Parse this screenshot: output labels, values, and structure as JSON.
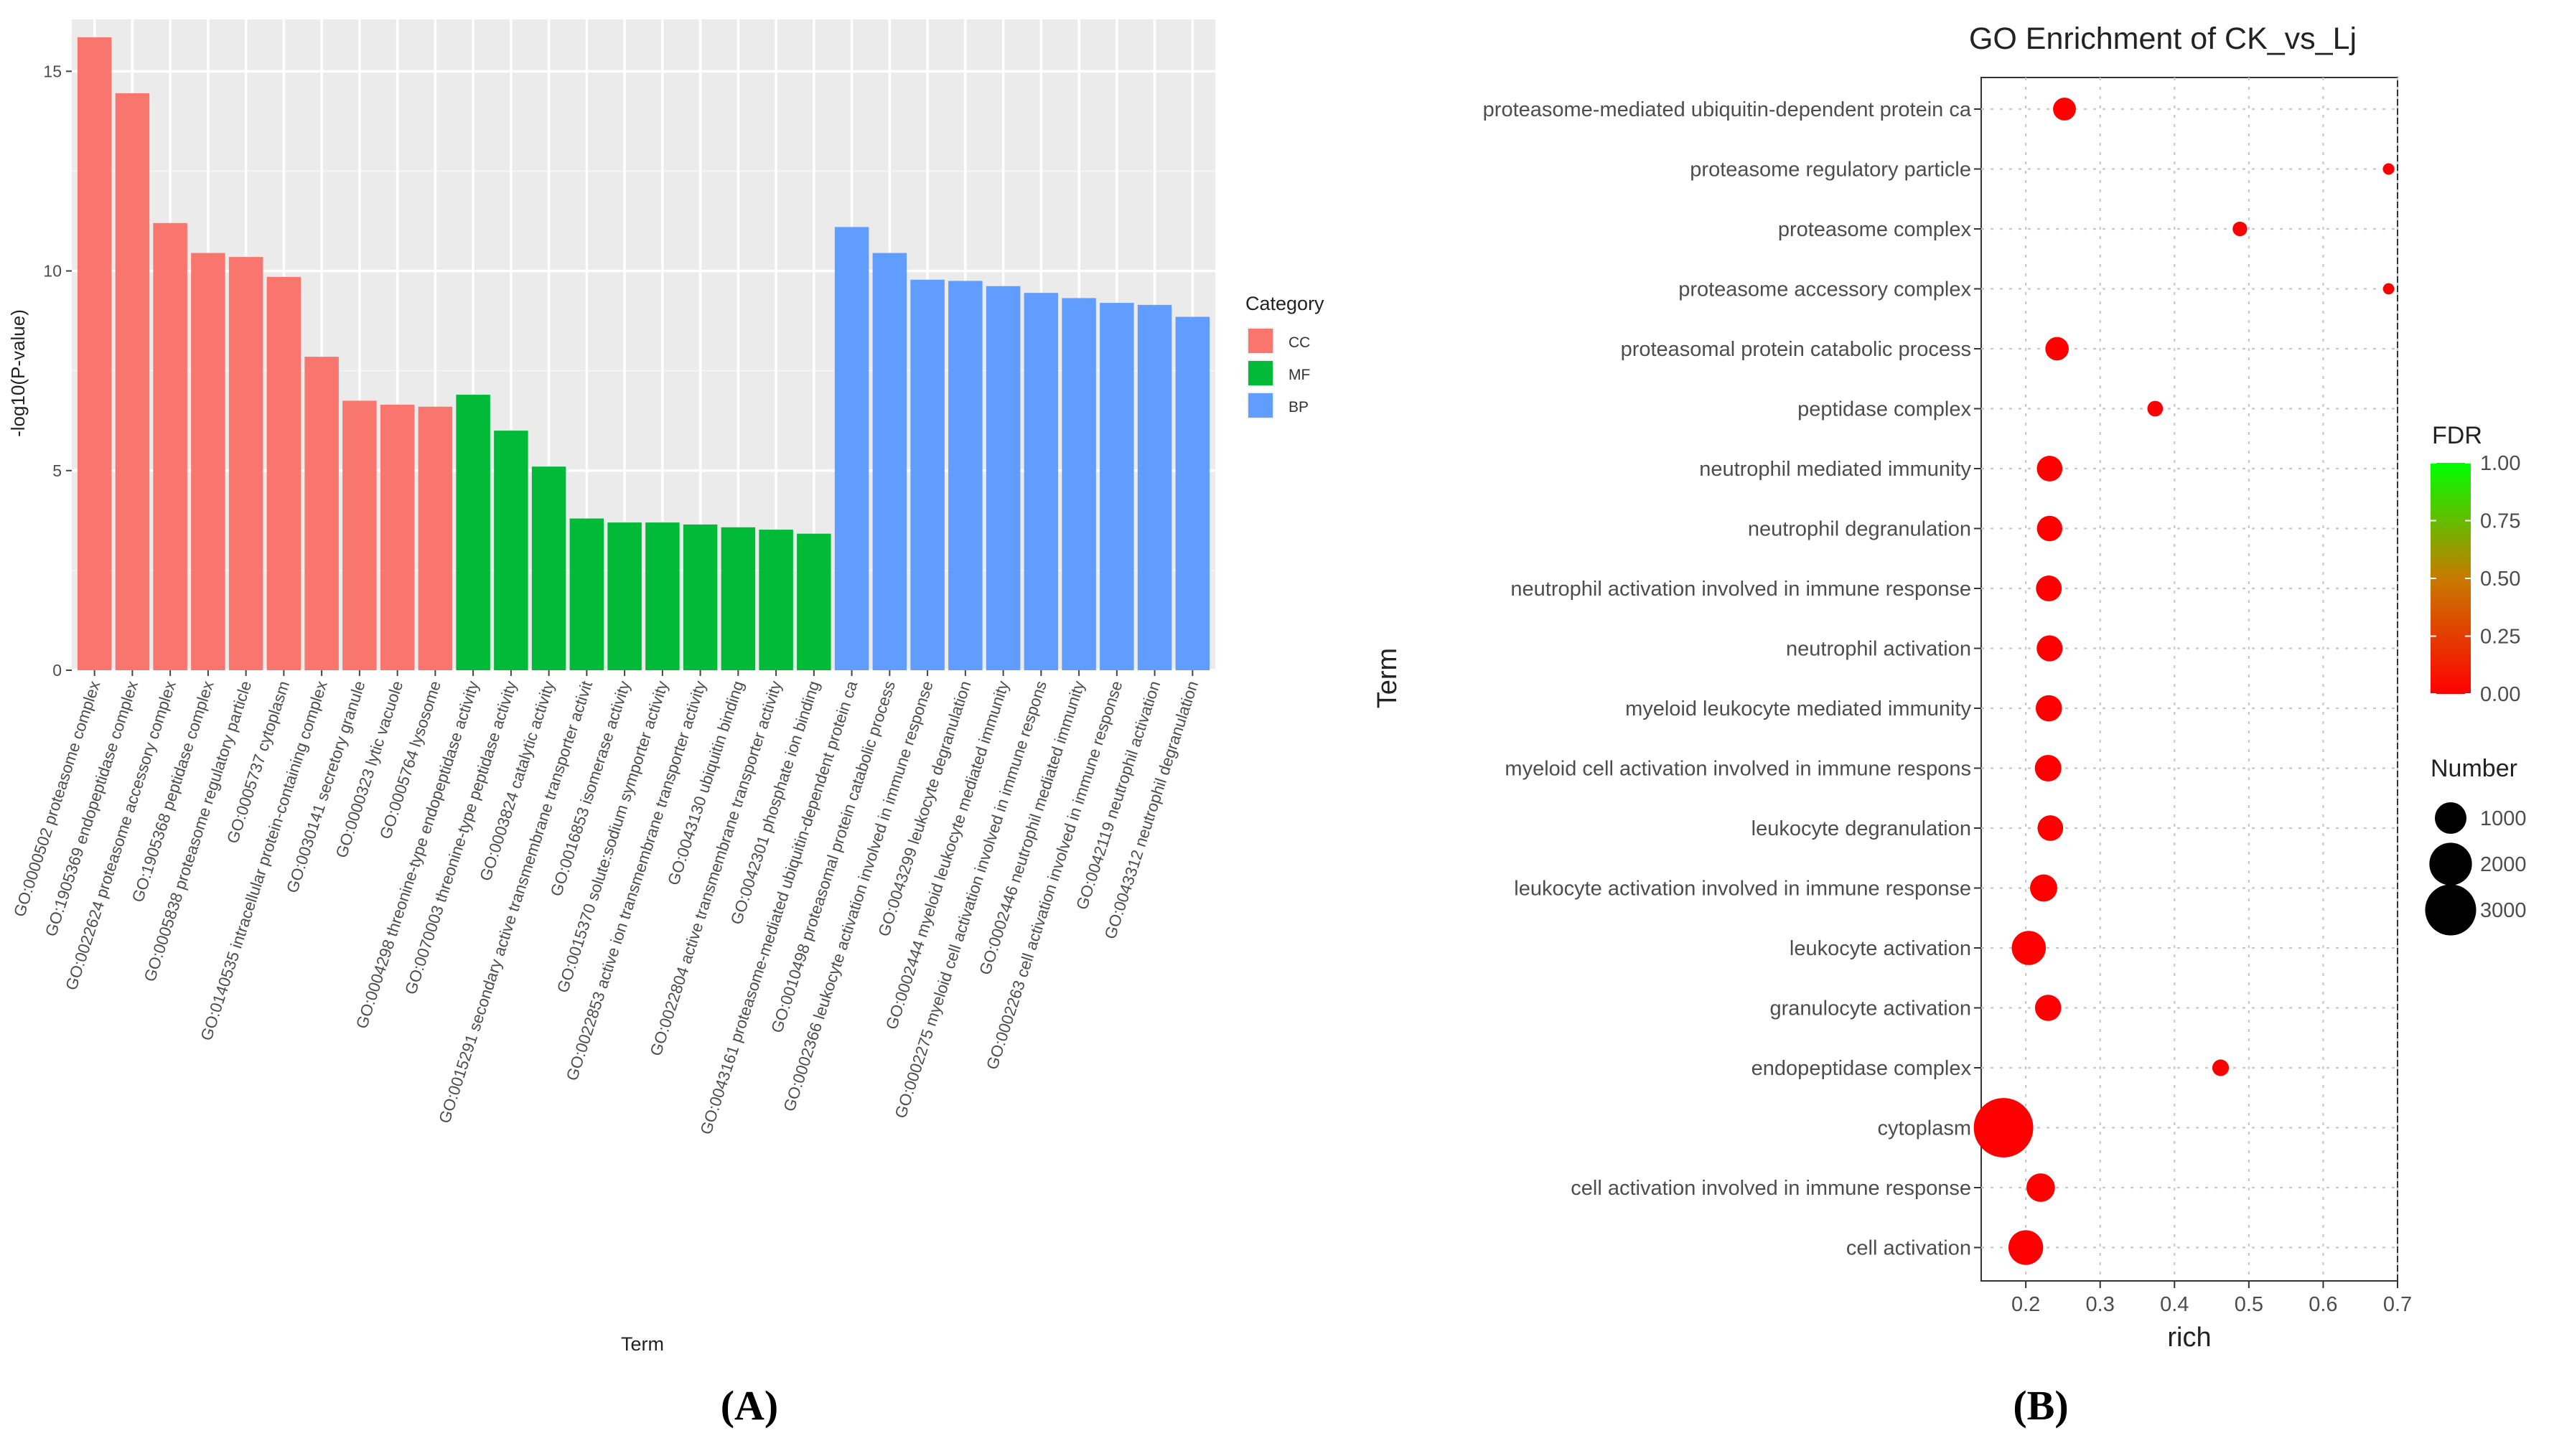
{
  "panel_labels": {
    "left": "(A)",
    "right": "(B)"
  },
  "chart_data": [
    {
      "type": "bar",
      "title": "",
      "xlabel": "Term",
      "ylabel": "-log10(P-value)",
      "ylim": [
        0,
        16.3
      ],
      "yticks": [
        0,
        5,
        10,
        15
      ],
      "legend": {
        "title": "Category",
        "position": "right",
        "entries": [
          {
            "name": "CC",
            "color": "#F8766D"
          },
          {
            "name": "MF",
            "color": "#00BA38"
          },
          {
            "name": "BP",
            "color": "#619CFF"
          }
        ]
      },
      "categories": [
        "GO:0000502 proteasome complex",
        "GO:1905369 endopeptidase complex",
        "GO:0022624 proteasome accessory complex",
        "GO:1905368 peptidase complex",
        "GO:0005838 proteasome regulatory particle",
        "GO:0005737 cytoplasm",
        "GO:0140535 intracellular protein-containing complex",
        "GO:0030141 secretory granule",
        "GO:0000323 lytic vacuole",
        "GO:0005764 lysosome",
        "GO:0004298 threonine-type endopeptidase activity",
        "GO:0070003 threonine-type peptidase activity",
        "GO:0003824 catalytic activity",
        "GO:0015291 secondary active transmembrane transporter activit",
        "GO:0016853 isomerase activity",
        "GO:0015370 solute:sodium symporter activity",
        "GO:0022853 active ion transmembrane transporter activity",
        "GO:0043130 ubiquitin binding",
        "GO:0022804 active transmembrane transporter activity",
        "GO:0042301 phosphate ion binding",
        "GO:0043161 proteasome-mediated ubiquitin-dependent protein ca",
        "GO:0010498 proteasomal protein catabolic process",
        "GO:0002366 leukocyte activation involved in immune response",
        "GO:0043299 leukocyte degranulation",
        "GO:0002444 myeloid leukocyte mediated immunity",
        "GO:0002275 myeloid cell activation involved in immune respons",
        "GO:0002446 neutrophil mediated immunity",
        "GO:0002263 cell activation involved in immune response",
        "GO:0042119 neutrophil activation",
        "GO:0043312 neutrophil degranulation"
      ],
      "category_of": [
        "CC",
        "CC",
        "CC",
        "CC",
        "CC",
        "CC",
        "CC",
        "CC",
        "CC",
        "CC",
        "MF",
        "MF",
        "MF",
        "MF",
        "MF",
        "MF",
        "MF",
        "MF",
        "MF",
        "MF",
        "BP",
        "BP",
        "BP",
        "BP",
        "BP",
        "BP",
        "BP",
        "BP",
        "BP",
        "BP"
      ],
      "values": [
        15.85,
        14.45,
        11.2,
        10.45,
        10.35,
        9.85,
        7.85,
        6.75,
        6.65,
        6.6,
        6.9,
        6.0,
        5.1,
        3.8,
        3.7,
        3.7,
        3.65,
        3.58,
        3.52,
        3.42,
        11.1,
        10.45,
        9.78,
        9.75,
        9.62,
        9.45,
        9.32,
        9.2,
        9.15,
        8.85
      ]
    },
    {
      "type": "scatter",
      "title": "GO Enrichment of CK_vs_Lj",
      "xlabel": "rich",
      "ylabel": "Term",
      "xlim": [
        0.14,
        0.7
      ],
      "xticks": [
        0.2,
        0.3,
        0.4,
        0.5,
        0.6,
        0.7
      ],
      "xtick_labels": [
        "0.2",
        "0.3",
        "0.4",
        "0.5",
        "0.6",
        "0.7"
      ],
      "terms": [
        "proteasome-mediated ubiquitin-dependent protein ca",
        "proteasome regulatory particle",
        "proteasome complex",
        "proteasome accessory complex",
        "proteasomal protein catabolic process",
        "peptidase complex",
        "neutrophil mediated immunity",
        "neutrophil degranulation",
        "neutrophil activation involved in immune response",
        "neutrophil activation",
        "myeloid leukocyte mediated immunity",
        "myeloid cell activation involved in immune respons",
        "leukocyte degranulation",
        "leukocyte activation involved in immune response",
        "leukocyte activation",
        "granulocyte activation",
        "endopeptidase complex",
        "cytoplasm",
        "cell activation involved in immune response",
        "cell activation"
      ],
      "rich": [
        0.252,
        0.688,
        0.488,
        0.688,
        0.242,
        0.374,
        0.232,
        0.232,
        0.231,
        0.232,
        0.231,
        0.23,
        0.233,
        0.224,
        0.204,
        0.23,
        0.462,
        0.17,
        0.22,
        0.2
      ],
      "number": [
        450,
        60,
        130,
        55,
        480,
        160,
        600,
        590,
        610,
        620,
        640,
        660,
        600,
        700,
        1200,
        640,
        190,
        4200,
        780,
        1250
      ],
      "fdr": [
        0.0,
        0.0,
        0.0,
        0.0,
        0.0,
        0.0,
        0.0,
        0.0,
        0.0,
        0.0,
        0.0,
        0.0,
        0.0,
        0.0,
        0.0,
        0.0,
        0.0,
        0.0,
        0.0,
        0.0
      ],
      "color_legend": {
        "title": "FDR",
        "ticks": [
          1.0,
          0.75,
          0.5,
          0.25,
          0.0
        ],
        "tick_labels": [
          "1.00",
          "0.75",
          "0.50",
          "0.25",
          "0.00"
        ],
        "low_color": "#FF0000",
        "high_color": "#00FF00"
      },
      "size_legend": {
        "title": "Number",
        "values": [
          1000,
          2000,
          3000
        ],
        "labels": [
          "1000",
          "2000",
          "3000"
        ]
      }
    }
  ]
}
